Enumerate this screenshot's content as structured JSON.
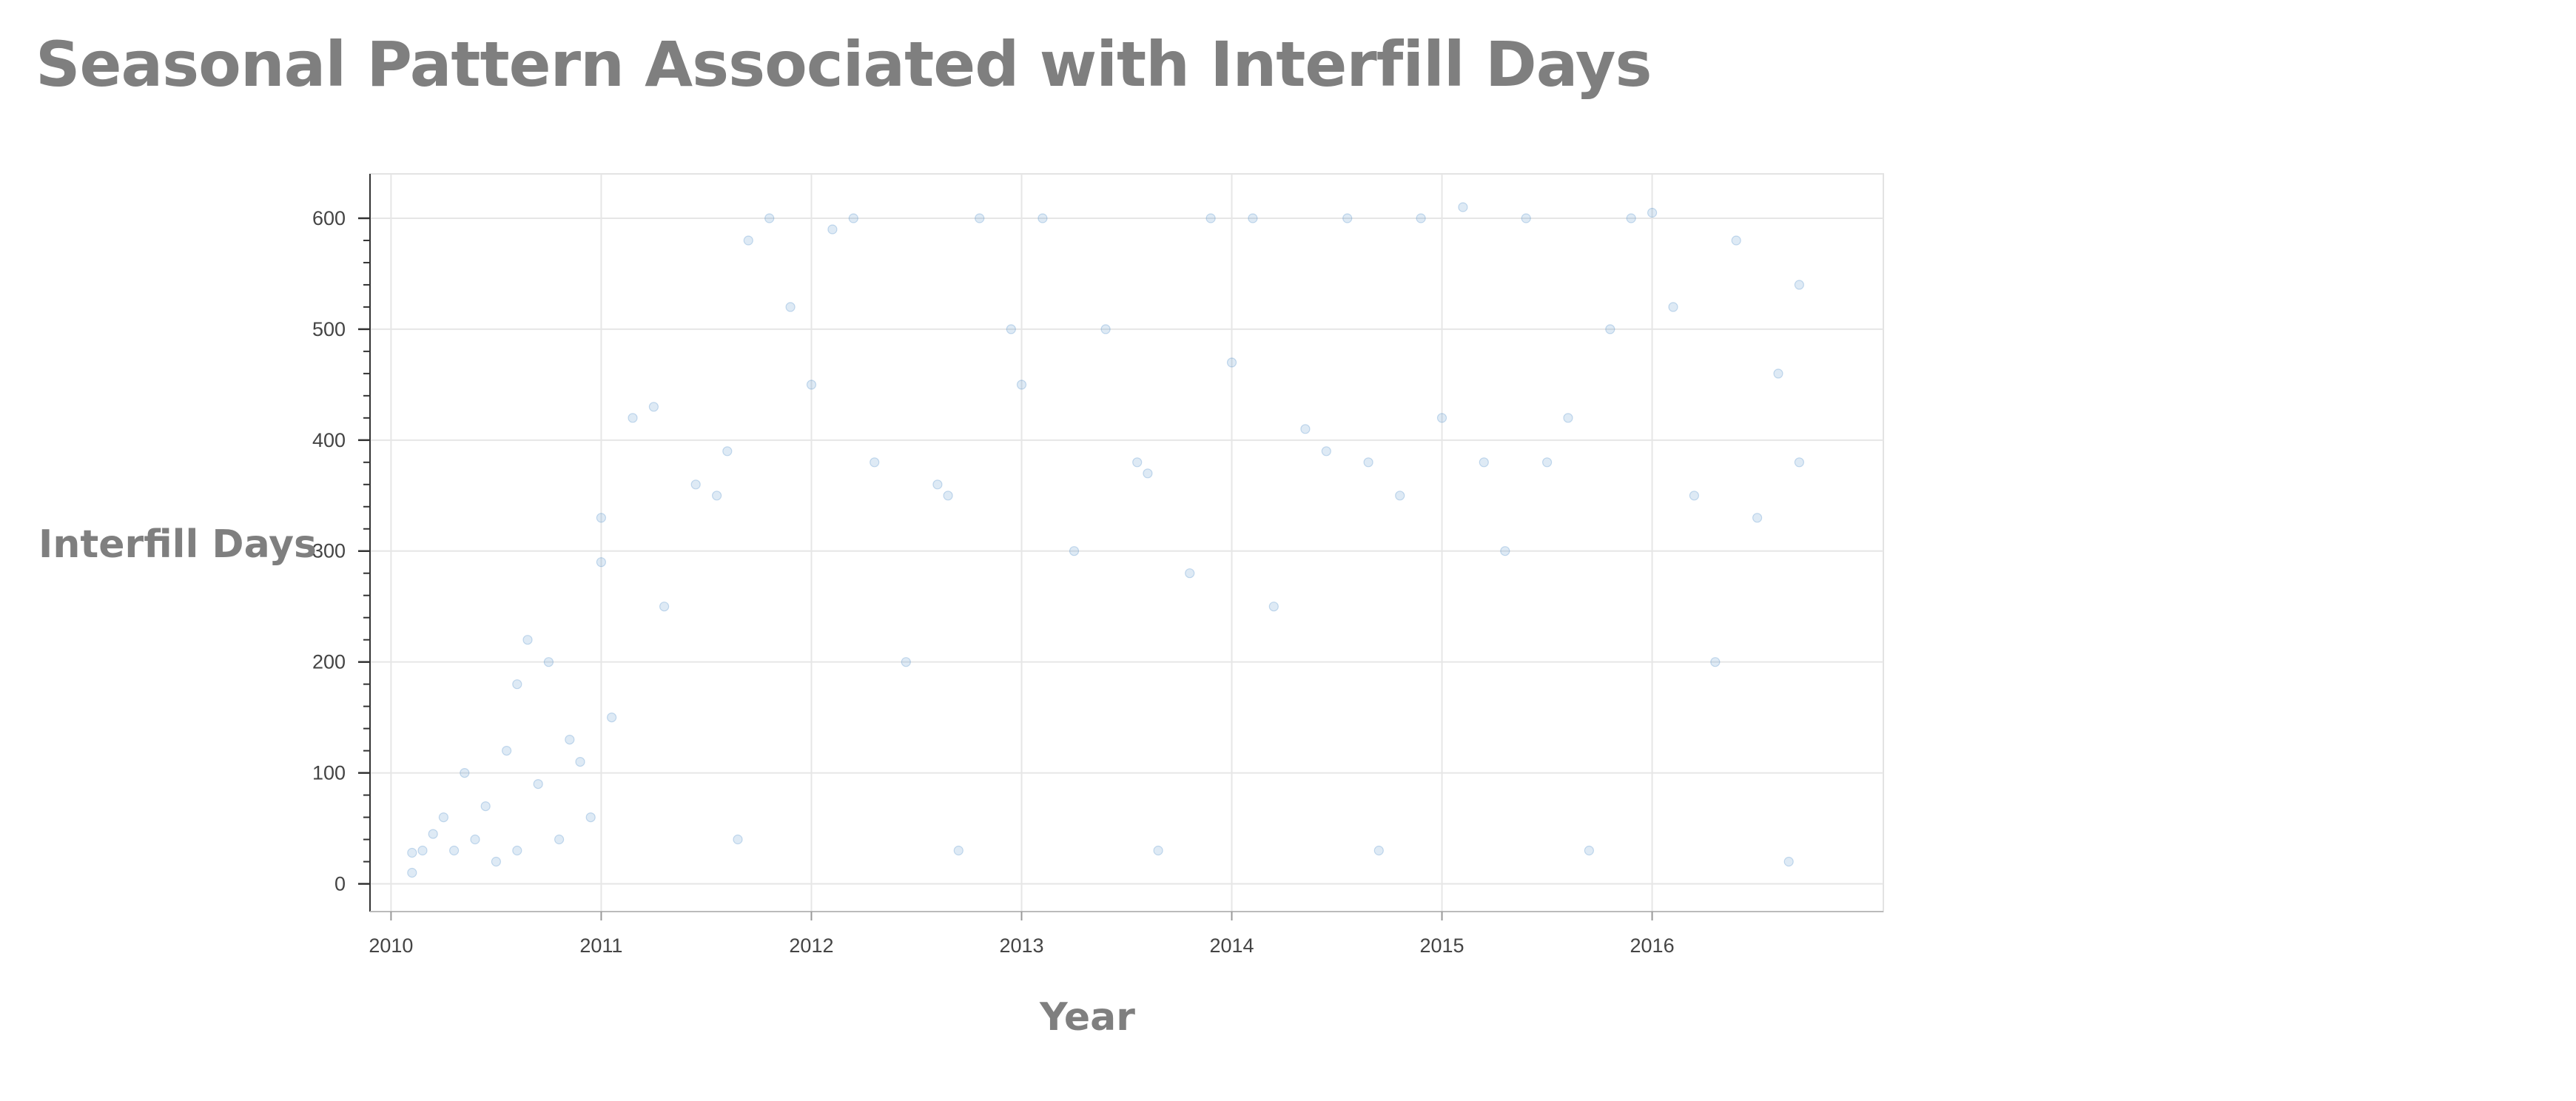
{
  "chart_data": {
    "type": "scatter",
    "title": "Seasonal Pattern Associated with Interfill Days",
    "xlabel": "Year",
    "ylabel": "Interfill Days",
    "xlim": [
      2009.9,
      2017.1
    ],
    "ylim": [
      -25,
      640
    ],
    "x_ticks": [
      "2010",
      "2011",
      "2012",
      "2013",
      "2014",
      "2015",
      "2016"
    ],
    "y_ticks": [
      "0",
      "100",
      "200",
      "300",
      "400",
      "500",
      "600"
    ],
    "grid": true,
    "legend": "none",
    "point_color": "#2f7abf",
    "point_alpha": 0.16,
    "series": [
      {
        "points": [
          [
            2010.1,
            10
          ],
          [
            2010.1,
            28
          ],
          [
            2010.15,
            30
          ],
          [
            2010.2,
            45
          ],
          [
            2010.25,
            60
          ],
          [
            2010.3,
            30
          ],
          [
            2010.35,
            100
          ],
          [
            2010.4,
            40
          ],
          [
            2010.45,
            70
          ],
          [
            2010.5,
            20
          ],
          [
            2010.55,
            120
          ],
          [
            2010.6,
            180
          ],
          [
            2010.6,
            30
          ],
          [
            2010.65,
            220
          ],
          [
            2010.7,
            90
          ],
          [
            2010.75,
            200
          ],
          [
            2010.8,
            40
          ],
          [
            2010.85,
            130
          ],
          [
            2010.9,
            110
          ],
          [
            2010.95,
            60
          ],
          [
            2011.0,
            330
          ],
          [
            2011.0,
            290
          ],
          [
            2011.05,
            150
          ],
          [
            2011.15,
            420
          ],
          [
            2011.25,
            430
          ],
          [
            2011.3,
            250
          ],
          [
            2011.45,
            360
          ],
          [
            2011.55,
            350
          ],
          [
            2011.6,
            390
          ],
          [
            2011.65,
            40
          ],
          [
            2011.7,
            580
          ],
          [
            2011.8,
            600
          ],
          [
            2011.9,
            520
          ],
          [
            2012.0,
            450
          ],
          [
            2012.1,
            590
          ],
          [
            2012.2,
            600
          ],
          [
            2012.3,
            380
          ],
          [
            2012.45,
            200
          ],
          [
            2012.6,
            360
          ],
          [
            2012.65,
            350
          ],
          [
            2012.7,
            30
          ],
          [
            2012.8,
            600
          ],
          [
            2012.95,
            500
          ],
          [
            2013.0,
            450
          ],
          [
            2013.1,
            600
          ],
          [
            2013.25,
            300
          ],
          [
            2013.4,
            500
          ],
          [
            2013.55,
            380
          ],
          [
            2013.6,
            370
          ],
          [
            2013.65,
            30
          ],
          [
            2013.8,
            280
          ],
          [
            2013.9,
            600
          ],
          [
            2014.0,
            470
          ],
          [
            2014.1,
            600
          ],
          [
            2014.2,
            250
          ],
          [
            2014.35,
            410
          ],
          [
            2014.45,
            390
          ],
          [
            2014.55,
            600
          ],
          [
            2014.65,
            380
          ],
          [
            2014.7,
            30
          ],
          [
            2014.8,
            350
          ],
          [
            2014.9,
            600
          ],
          [
            2015.0,
            420
          ],
          [
            2015.1,
            610
          ],
          [
            2015.2,
            380
          ],
          [
            2015.3,
            300
          ],
          [
            2015.4,
            600
          ],
          [
            2015.5,
            380
          ],
          [
            2015.6,
            420
          ],
          [
            2015.7,
            30
          ],
          [
            2015.8,
            500
          ],
          [
            2015.9,
            600
          ],
          [
            2016.0,
            605
          ],
          [
            2016.1,
            520
          ],
          [
            2016.2,
            350
          ],
          [
            2016.3,
            200
          ],
          [
            2016.4,
            580
          ],
          [
            2016.5,
            330
          ],
          [
            2016.6,
            460
          ],
          [
            2016.65,
            20
          ],
          [
            2016.7,
            540
          ],
          [
            2016.7,
            380
          ]
        ]
      }
    ]
  }
}
